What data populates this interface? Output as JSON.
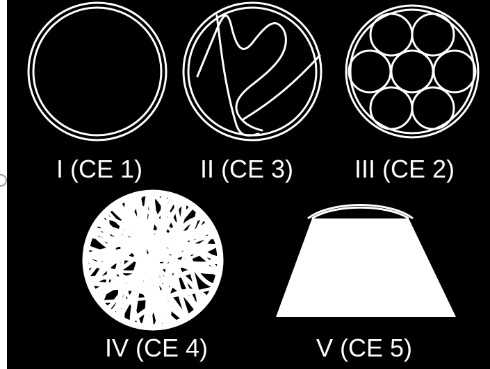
{
  "figure": {
    "background_color": "#000000",
    "line_color": "#ffffff",
    "items": [
      {
        "id": "I",
        "label": "I (CE 1)",
        "shape": "empty circular tube"
      },
      {
        "id": "II",
        "label": "II (CE 3)",
        "shape": "circular tube with thin winding partitions"
      },
      {
        "id": "III",
        "label": "III (CE 2)",
        "shape": "circular tube packed with seven smaller circles"
      },
      {
        "id": "IV",
        "label": "IV (CE 4)",
        "shape": "circular tube filled with a dense tangle of fibers"
      },
      {
        "id": "V",
        "label": "V (CE 5)",
        "shape": "double arch above a filled trapezoid"
      }
    ]
  }
}
